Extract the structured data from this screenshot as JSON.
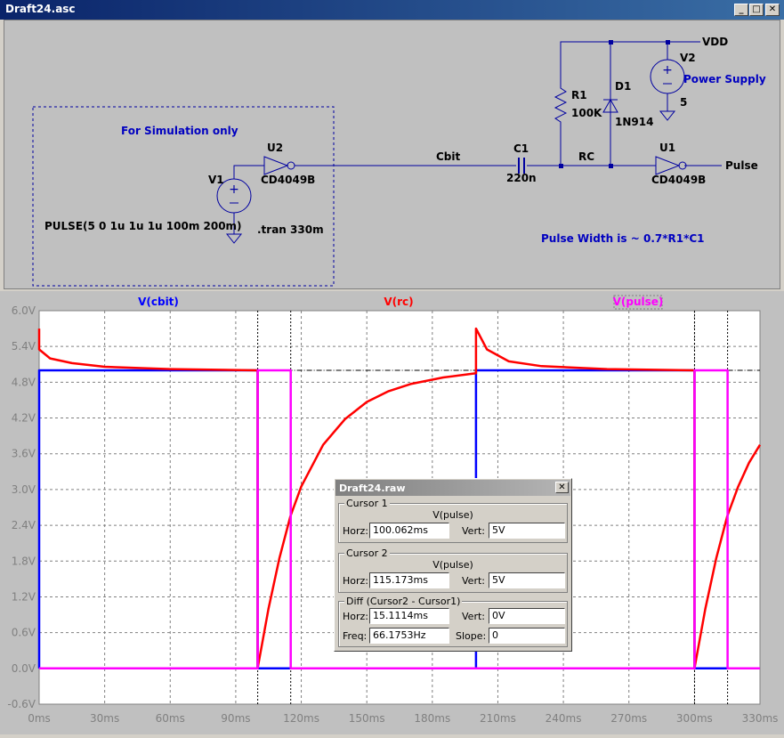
{
  "window": {
    "title": "Draft24.asc",
    "minimize": "_",
    "maximize": "□",
    "close": "✕"
  },
  "schematic": {
    "note_sim": "For Simulation only",
    "u2": {
      "name": "U2",
      "model": "CD4049B"
    },
    "v1": {
      "name": "V1",
      "value": "PULSE(5 0 1u 1u 1u 100m 200m)"
    },
    "tran": ".tran 330m",
    "net_cbit": "Cbit",
    "c1": {
      "name": "C1",
      "value": "220n"
    },
    "net_rc": "RC",
    "r1": {
      "name": "R1",
      "value": "100K"
    },
    "d1": {
      "name": "D1",
      "model": "1N914"
    },
    "v2": {
      "name": "V2",
      "label": "Power Supply",
      "value": "5"
    },
    "vdd": "VDD",
    "u1": {
      "name": "U1",
      "model": "CD4049B"
    },
    "net_pulse": "Pulse",
    "note_width": "Pulse Width is ~ 0.7*R1*C1"
  },
  "colors": {
    "cbit": "#0000ff",
    "rc": "#ff0000",
    "pulse": "#ff00ff",
    "wire": "#0000a0",
    "label": "#0000c0"
  },
  "chart_data": {
    "type": "line",
    "xlabel": "",
    "ylabel": "",
    "xlim": [
      0,
      330
    ],
    "ylim": [
      -0.6,
      6.0
    ],
    "x_ticks": [
      "0ms",
      "30ms",
      "60ms",
      "90ms",
      "120ms",
      "150ms",
      "180ms",
      "210ms",
      "240ms",
      "270ms",
      "300ms",
      "330ms"
    ],
    "y_ticks": [
      "6.0V",
      "5.4V",
      "4.8V",
      "4.2V",
      "3.6V",
      "3.0V",
      "2.4V",
      "1.8V",
      "1.2V",
      "0.6V",
      "0.0V",
      "-0.6V"
    ],
    "grid": true,
    "legend": "top",
    "series": [
      {
        "name": "V(cbit)",
        "x": [
          0,
          0,
          100,
          100,
          200,
          200,
          300,
          300,
          330
        ],
        "y": [
          0,
          5,
          5,
          0,
          0,
          5,
          5,
          0,
          0
        ]
      },
      {
        "name": "V(rc)",
        "x": [
          0,
          0,
          5,
          15,
          30,
          60,
          100,
          100,
          105,
          110,
          115,
          120,
          130,
          140,
          150,
          160,
          170,
          185,
          200,
          200,
          205,
          215,
          230,
          260,
          300,
          300,
          305,
          310,
          315,
          320,
          325,
          330
        ],
        "y": [
          5.7,
          5.35,
          5.2,
          5.12,
          5.06,
          5.02,
          5.0,
          0.0,
          1.0,
          1.85,
          2.55,
          3.05,
          3.75,
          4.18,
          4.47,
          4.65,
          4.77,
          4.88,
          4.95,
          5.7,
          5.35,
          5.15,
          5.07,
          5.02,
          5.0,
          0.0,
          1.0,
          1.85,
          2.55,
          3.05,
          3.45,
          3.75
        ]
      },
      {
        "name": "V(pulse)",
        "x": [
          0,
          100.062,
          100.062,
          115.173,
          115.173,
          200,
          300.062,
          300.062,
          315.173,
          315.173,
          330
        ],
        "y": [
          0,
          0,
          5,
          5,
          0,
          0,
          0,
          5,
          5,
          0,
          0
        ]
      }
    ],
    "reference_line": 5.0,
    "cursor_x": [
      100.062,
      115.173,
      300.062,
      315.173
    ]
  },
  "cursor_dialog": {
    "title": "Draft24.raw",
    "close": "✕",
    "cursor1": {
      "label": "Cursor 1",
      "signal": "V(pulse)",
      "horz_label": "Horz:",
      "horz": "100.062ms",
      "vert_label": "Vert:",
      "vert": "5V"
    },
    "cursor2": {
      "label": "Cursor 2",
      "signal": "V(pulse)",
      "horz_label": "Horz:",
      "horz": "115.173ms",
      "vert_label": "Vert:",
      "vert": "5V"
    },
    "diff": {
      "label": "Diff (Cursor2 - Cursor1)",
      "horz_label": "Horz:",
      "horz": "15.1114ms",
      "vert_label": "Vert:",
      "vert": "0V",
      "freq_label": "Freq:",
      "freq": "66.1753Hz",
      "slope_label": "Slope:",
      "slope": "0"
    }
  }
}
